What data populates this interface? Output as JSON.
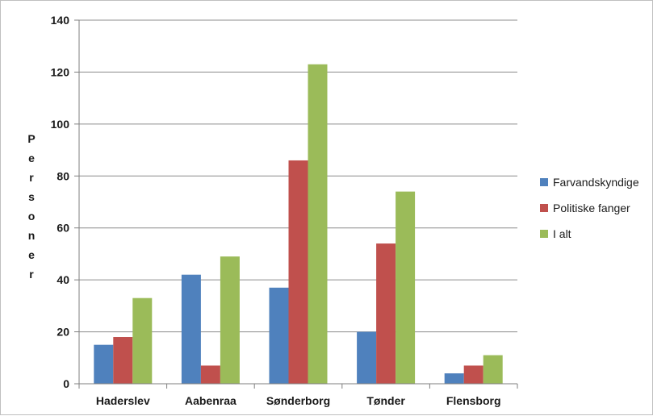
{
  "chart_data": {
    "type": "bar",
    "title": "",
    "xlabel": "",
    "ylabel": "Personer",
    "ylim": [
      0,
      140
    ],
    "yticks": [
      0,
      20,
      40,
      60,
      80,
      100,
      120,
      140
    ],
    "grid": true,
    "legend_position": "right",
    "categories": [
      "Haderslev",
      "Aabenraa",
      "Sønderborg",
      "Tønder",
      "Flensborg"
    ],
    "series": [
      {
        "name": "Farvandskyndige",
        "color": "#4f81bd",
        "values": [
          15,
          42,
          37,
          20,
          4
        ]
      },
      {
        "name": "Politiske fanger",
        "color": "#c0504d",
        "values": [
          18,
          7,
          86,
          54,
          7
        ]
      },
      {
        "name": "I alt",
        "color": "#9bbb59",
        "values": [
          33,
          49,
          123,
          74,
          11
        ]
      }
    ]
  }
}
